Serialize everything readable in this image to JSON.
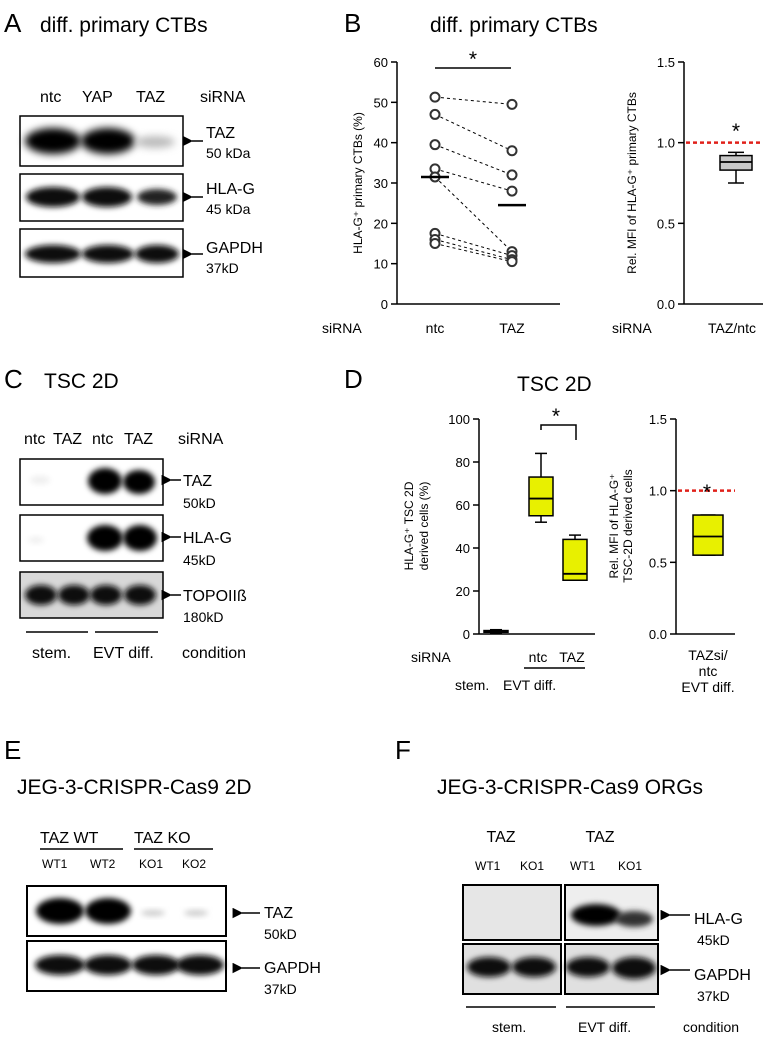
{
  "panelA": {
    "letter": "A",
    "title": "diff. primary CTBs",
    "lanes": [
      "ntc",
      "YAP",
      "TAZ"
    ],
    "lanes_label": "siRNA",
    "blots": [
      {
        "name": "TAZ",
        "size": "50 kDa"
      },
      {
        "name": "HLA-G",
        "size": "45 kDa"
      },
      {
        "name": "GAPDH",
        "size": "37kD"
      }
    ]
  },
  "panelB": {
    "letter": "B",
    "title": "diff. primary CTBs",
    "siRNA_label": "siRNA",
    "star": "*",
    "star2": "*"
  },
  "panelC": {
    "letter": "C",
    "title": "TSC 2D",
    "lanes": [
      "ntc",
      "TAZ",
      "ntc",
      "TAZ"
    ],
    "lanes_label": "siRNA",
    "blots": [
      {
        "name": "TAZ",
        "size": "50kD"
      },
      {
        "name": "HLA-G",
        "size": "45kD"
      },
      {
        "name": "TOPOIIß",
        "size": "180kD"
      }
    ],
    "conditions": [
      "stem.",
      "EVT diff.",
      "condition"
    ]
  },
  "panelD": {
    "letter": "D",
    "title": "TSC 2D",
    "siRNA_label": "siRNA",
    "cond_stem": "stem.",
    "cond_evt": "EVT diff.",
    "star": "*",
    "star2": "*",
    "right_xlabel_1": "TAZsi/",
    "right_xlabel_2": "ntc",
    "right_xlabel_3": "EVT diff."
  },
  "panelE": {
    "letter": "E",
    "title": "JEG-3-CRISPR-Cas9 2D",
    "groups": [
      "TAZ WT",
      "TAZ KO"
    ],
    "lanes": [
      "WT1",
      "WT2",
      "KO1",
      "KO2"
    ],
    "blots": [
      {
        "name": "TAZ",
        "size": "50kD"
      },
      {
        "name": "GAPDH",
        "size": "37kD"
      }
    ]
  },
  "panelF": {
    "letter": "F",
    "title": "JEG-3-CRISPR-Cas9 ORGs",
    "groups": [
      "TAZ",
      "TAZ"
    ],
    "lanes": [
      "WT1",
      "KO1",
      "WT1",
      "KO1"
    ],
    "blots": [
      {
        "name": "HLA-G",
        "size": "45kD"
      },
      {
        "name": "GAPDH",
        "size": "37kD"
      }
    ],
    "conditions": [
      "stem.",
      "EVT diff.",
      "condition"
    ]
  },
  "chart_data": [
    {
      "type": "scatter",
      "id": "B-left",
      "ylabel": "HLA-G⁺ primary CTBs (%)",
      "categories": [
        "ntc",
        "TAZ"
      ],
      "ylim": [
        0,
        60
      ],
      "yticks": [
        0,
        10,
        20,
        30,
        40,
        50,
        60
      ],
      "pairs": [
        [
          51.3,
          49.5
        ],
        [
          47.0,
          38.0
        ],
        [
          39.5,
          32.0
        ],
        [
          33.5,
          28.0
        ],
        [
          31.5,
          13.0
        ],
        [
          17.5,
          12.0
        ],
        [
          16.0,
          11.0
        ],
        [
          15.0,
          10.5
        ]
      ],
      "means": [
        31.5,
        24.5
      ]
    },
    {
      "type": "box",
      "id": "B-right",
      "ylabel": "Rel. MFI of HLA-G⁺ primary CTBs",
      "categories": [
        "TAZ/ntc"
      ],
      "ylim": [
        0,
        1.5
      ],
      "yticks": [
        "0.0",
        "0.5",
        "1.0",
        "1.5"
      ],
      "reference": 1.0,
      "boxes": [
        {
          "min": 0.75,
          "q1": 0.83,
          "median": 0.88,
          "q3": 0.92,
          "max": 0.94
        }
      ]
    },
    {
      "type": "box",
      "id": "D-left",
      "ylabel_1": "HLA-G⁺ TSC 2D",
      "ylabel_2": "derived cells (%)",
      "categories": [
        "",
        "ntc",
        "TAZ"
      ],
      "ylim": [
        0,
        100
      ],
      "yticks": [
        0,
        20,
        40,
        60,
        80,
        100
      ],
      "boxes": [
        {
          "min": 0.5,
          "q1": 0.8,
          "median": 1.2,
          "q3": 1.6,
          "max": 2.0
        },
        {
          "min": 52,
          "q1": 55,
          "median": 63,
          "q3": 73,
          "max": 84
        },
        {
          "min": 25,
          "q1": 25,
          "median": 28,
          "q3": 44,
          "max": 46
        }
      ]
    },
    {
      "type": "box",
      "id": "D-right",
      "ylabel_1": "Rel. MFI of HLA-G⁺",
      "ylabel_2": "TSC-2D derived cells",
      "ylim": [
        0,
        1.5
      ],
      "yticks": [
        "0.0",
        "0.5",
        "1.0",
        "1.5"
      ],
      "reference": 1.0,
      "boxes": [
        {
          "min": 0.55,
          "q1": 0.55,
          "median": 0.68,
          "q3": 0.83,
          "max": 0.83
        }
      ]
    }
  ]
}
